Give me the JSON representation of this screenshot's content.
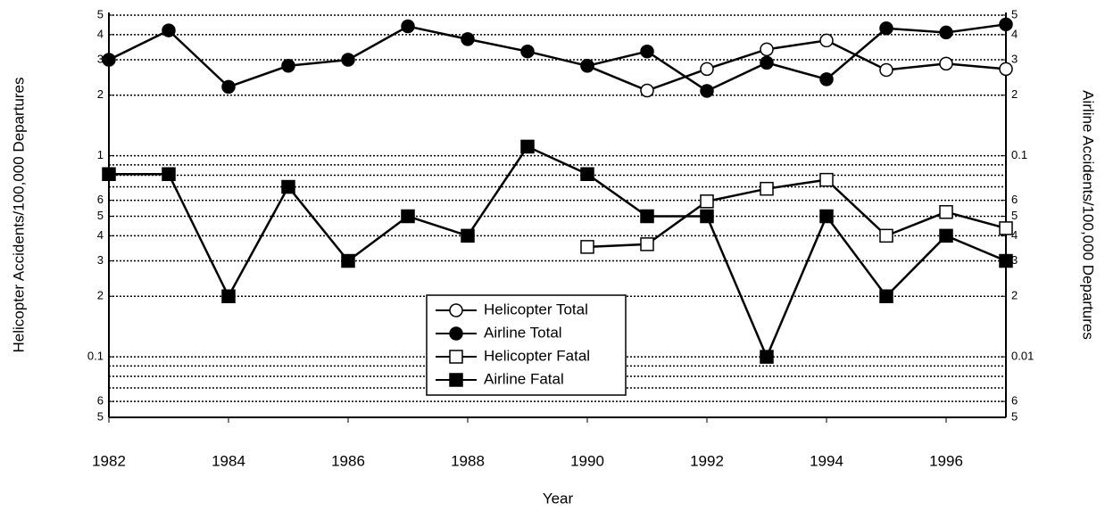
{
  "chart_data": {
    "type": "line",
    "xlabel": "Year",
    "ylabel": "Helicopter Accidents/100,000 Departures",
    "y2label": "Airline Accidents/100,000 Departures",
    "x": [
      1982,
      1983,
      1984,
      1985,
      1986,
      1987,
      1988,
      1989,
      1990,
      1991,
      1992,
      1993,
      1994,
      1995,
      1996,
      1997
    ],
    "xlim": [
      1982,
      1997
    ],
    "xticks": [
      1982,
      1984,
      1986,
      1988,
      1990,
      1992,
      1994,
      1996
    ],
    "ylim": [
      0.05,
      5
    ],
    "yscale": "log",
    "yticks": [
      5,
      4,
      3,
      2,
      1,
      {
        "value": 0.6,
        "label": "6"
      },
      {
        "value": 0.5,
        "label": "5"
      },
      {
        "value": 0.4,
        "label": "4"
      },
      {
        "value": 0.3,
        "label": "3"
      },
      {
        "value": 0.2,
        "label": "2"
      },
      0.1,
      {
        "value": 0.06,
        "label": "6"
      },
      {
        "value": 0.05,
        "label": "5"
      }
    ],
    "yminor": [
      0.9,
      0.8,
      0.7,
      0.09,
      0.08,
      0.07
    ],
    "y2lim": [
      0.005,
      0.5
    ],
    "y2ticks": [
      {
        "value": 0.5,
        "label": "5"
      },
      {
        "value": 0.4,
        "label": "4"
      },
      {
        "value": 0.3,
        "label": "3"
      },
      {
        "value": 0.2,
        "label": "2"
      },
      0.1,
      {
        "value": 0.06,
        "label": "6"
      },
      {
        "value": 0.05,
        "label": "5"
      },
      {
        "value": 0.04,
        "label": "4"
      },
      {
        "value": 0.03,
        "label": "3"
      },
      {
        "value": 0.02,
        "label": "2"
      },
      0.01,
      {
        "value": 0.006,
        "label": "6"
      },
      {
        "value": 0.005,
        "label": "5"
      }
    ],
    "grid": true,
    "legend": "bottom-center",
    "series": [
      {
        "name": "Helicopter Total",
        "color": "#000000",
        "marker": "circle",
        "filled": false,
        "values": [
          null,
          null,
          null,
          null,
          null,
          null,
          null,
          null,
          2.8,
          2.11,
          2.7,
          3.38,
          3.74,
          2.67,
          2.87,
          2.7
        ]
      },
      {
        "name": "Airline Total",
        "color": "#000000",
        "marker": "circle",
        "filled": true,
        "axis": "y2",
        "values": [
          0.3,
          0.42,
          0.22,
          0.28,
          0.3,
          0.44,
          0.38,
          0.33,
          0.28,
          0.33,
          0.21,
          0.29,
          0.24,
          0.43,
          0.41,
          0.45
        ]
      },
      {
        "name": "Helicopter Fatal",
        "color": "#000000",
        "marker": "square",
        "filled": false,
        "values": [
          null,
          null,
          null,
          null,
          null,
          null,
          null,
          null,
          0.352,
          0.363,
          0.593,
          0.685,
          0.759,
          0.4,
          0.525,
          0.436
        ]
      },
      {
        "name": "Airline Fatal",
        "color": "#000000",
        "marker": "square",
        "filled": true,
        "axis": "y2",
        "values": [
          0.081,
          0.081,
          0.02,
          0.07,
          0.03,
          0.05,
          0.04,
          0.111,
          0.081,
          0.05,
          0.05,
          0.01,
          0.05,
          0.02,
          0.04,
          0.03
        ]
      }
    ]
  }
}
